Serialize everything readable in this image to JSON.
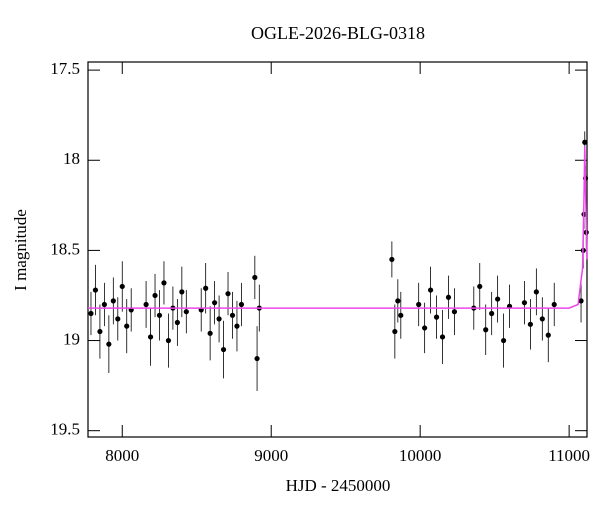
{
  "chart_data": {
    "type": "scatter",
    "title": "OGLE-2026-BLG-0318",
    "x_label": "HJD - 2450000",
    "y_label": "I magnitude",
    "xlim": [
      7770,
      11120
    ],
    "ylim": [
      19.535,
      17.455
    ],
    "xticks": [
      8000,
      9000,
      10000,
      11000
    ],
    "yticks": [
      17.5,
      18,
      18.5,
      19,
      19.5
    ],
    "color": "#000000",
    "x": [
      7790,
      7820,
      7850,
      7880,
      7910,
      7940,
      7970,
      8000,
      8030,
      8060,
      8160,
      8190,
      8220,
      8250,
      8280,
      8310,
      8340,
      8370,
      8400,
      8430,
      8530,
      8560,
      8590,
      8620,
      8650,
      8680,
      8710,
      8740,
      8770,
      8800,
      8890,
      8905,
      8920,
      9810,
      9830,
      9850,
      9870,
      9990,
      10030,
      10070,
      10110,
      10150,
      10190,
      10230,
      10360,
      10400,
      10440,
      10480,
      10520,
      10560,
      10600,
      10700,
      10740,
      10780,
      10820,
      10860,
      10900,
      11080,
      11095,
      11100,
      11105,
      11110,
      11115
    ],
    "values": [
      18.85,
      18.72,
      18.95,
      18.8,
      19.02,
      18.78,
      18.88,
      18.7,
      18.92,
      18.83,
      18.8,
      18.98,
      18.75,
      18.86,
      18.68,
      19.0,
      18.82,
      18.9,
      18.73,
      18.84,
      18.83,
      18.71,
      18.96,
      18.79,
      18.88,
      19.05,
      18.74,
      18.86,
      18.92,
      18.8,
      18.65,
      19.1,
      18.82,
      18.55,
      18.95,
      18.78,
      18.86,
      18.8,
      18.93,
      18.72,
      18.87,
      18.98,
      18.76,
      18.84,
      18.82,
      18.7,
      18.94,
      18.85,
      18.77,
      19.0,
      18.81,
      18.79,
      18.91,
      18.73,
      18.88,
      18.97,
      18.8,
      18.78,
      18.5,
      18.3,
      17.9,
      18.1,
      18.4
    ],
    "errors": [
      0.12,
      0.14,
      0.15,
      0.12,
      0.16,
      0.13,
      0.12,
      0.14,
      0.15,
      0.12,
      0.13,
      0.16,
      0.12,
      0.14,
      0.12,
      0.15,
      0.12,
      0.13,
      0.14,
      0.12,
      0.12,
      0.14,
      0.15,
      0.12,
      0.13,
      0.16,
      0.12,
      0.13,
      0.14,
      0.12,
      0.12,
      0.18,
      0.13,
      0.1,
      0.15,
      0.12,
      0.13,
      0.12,
      0.14,
      0.13,
      0.12,
      0.15,
      0.12,
      0.13,
      0.12,
      0.13,
      0.14,
      0.12,
      0.13,
      0.15,
      0.12,
      0.12,
      0.14,
      0.13,
      0.12,
      0.15,
      0.12,
      0.12,
      0.1,
      0.08,
      0.06,
      0.07,
      0.09
    ],
    "model": {
      "color": "#ee44ee",
      "x": [
        7770,
        11000,
        11060,
        11090,
        11100,
        11105,
        11110,
        11120
      ],
      "values": [
        18.82,
        18.82,
        18.8,
        18.6,
        18.2,
        17.92,
        18.15,
        18.55
      ]
    }
  }
}
